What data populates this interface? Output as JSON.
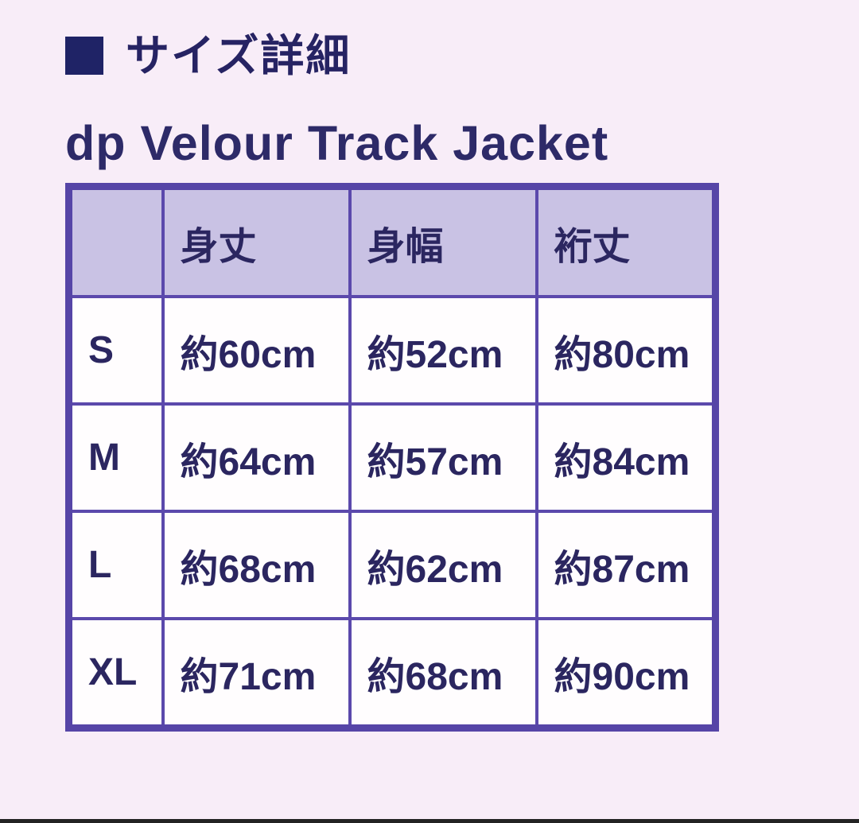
{
  "colors": {
    "page_bg": "#f8edf8",
    "text_navy": "#2b2660",
    "title_navy": "#2d2a68",
    "bullet_navy": "#1f2366",
    "table_outer_border": "#5645a7",
    "table_inner_border": "#5b49ac",
    "header_cell_bg": "#c9c2e4",
    "cell_bg": "#fffdfe",
    "bottom_bar": "#232323"
  },
  "section": {
    "heading": "サイズ詳細"
  },
  "product": {
    "title": "dp Velour Track Jacket"
  },
  "size_table": {
    "columns": [
      "",
      "身丈",
      "身幅",
      "裄丈"
    ],
    "rows": [
      {
        "size": "S",
        "values": [
          "約60cm",
          "約52cm",
          "約80cm"
        ]
      },
      {
        "size": "M",
        "values": [
          "約64cm",
          "約57cm",
          "約84cm"
        ]
      },
      {
        "size": "L",
        "values": [
          "約68cm",
          "約62cm",
          "約87cm"
        ]
      },
      {
        "size": "XL",
        "values": [
          "約71cm",
          "約68cm",
          "約90cm"
        ]
      }
    ]
  }
}
